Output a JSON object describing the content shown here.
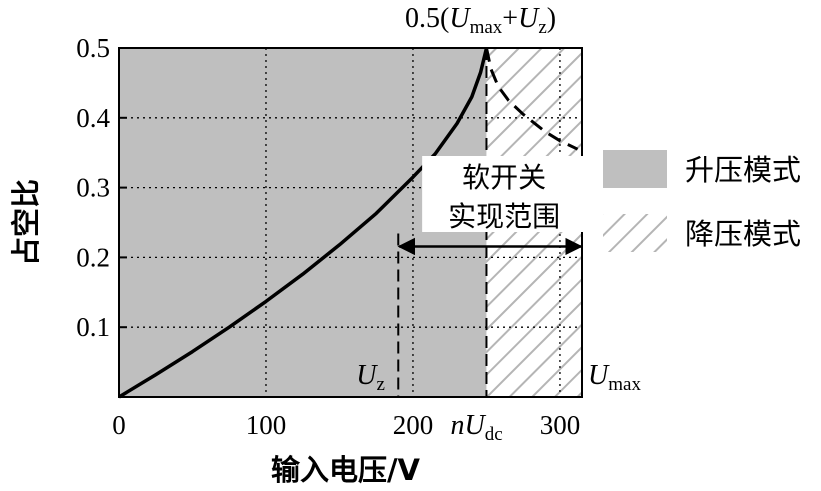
{
  "chart_data": {
    "type": "line",
    "xlabel": "输入电压/V",
    "ylabel": "占空比",
    "xlim": [
      0,
      315
    ],
    "ylim": [
      0,
      0.5
    ],
    "x_ticks": [
      {
        "value": 0,
        "label": "0"
      },
      {
        "value": 100,
        "label": "100"
      },
      {
        "value": 200,
        "label": "200"
      },
      {
        "value": 300,
        "label": "300"
      }
    ],
    "y_ticks": [
      {
        "value": 0.1,
        "label": "0.1"
      },
      {
        "value": 0.2,
        "label": "0.2"
      },
      {
        "value": 0.3,
        "label": "0.3"
      },
      {
        "value": 0.4,
        "label": "0.4"
      },
      {
        "value": 0.5,
        "label": "0.5"
      }
    ],
    "grid_x": [
      100,
      200,
      300
    ],
    "grid_y": [
      0.1,
      0.2,
      0.3,
      0.4
    ],
    "boost_region": {
      "x_from": 0,
      "x_to": 250,
      "label": "升压模式",
      "color": "#bfbfbf"
    },
    "buck_region": {
      "x_from": 250,
      "x_to": 315,
      "label": "降压模式",
      "color": "#bdbdbd"
    },
    "series": [
      {
        "style": "solid",
        "x": [
          0,
          25,
          50,
          75,
          100,
          125,
          150,
          175,
          200,
          215,
          230,
          240,
          246,
          250
        ],
        "y": [
          0,
          0.032,
          0.065,
          0.1,
          0.137,
          0.176,
          0.218,
          0.263,
          0.315,
          0.348,
          0.392,
          0.43,
          0.465,
          0.5
        ]
      },
      {
        "style": "dashed",
        "x": [
          250,
          253,
          258,
          265,
          275,
          290,
          300,
          312
        ],
        "y": [
          0.5,
          0.47,
          0.445,
          0.425,
          0.405,
          0.38,
          0.367,
          0.355
        ]
      }
    ],
    "markers": {
      "Uz": {
        "x": 190,
        "label_main": "U",
        "label_sub": "z"
      },
      "nUdc": {
        "x": 250,
        "label_pre": "n",
        "label_main": "U",
        "label_sub": "dc"
      },
      "Umax": {
        "x": 300,
        "label_main": "U",
        "label_sub": "max"
      }
    },
    "top_annotation": {
      "prefix": "0.5(",
      "u1": "U",
      "sub1": "max",
      "plus": "+",
      "u2": "U",
      "sub2": "z",
      "suffix": ")"
    },
    "range_annotation": {
      "line1": "软开关",
      "line2": "实现范围",
      "x_from": 190,
      "x_to": 315,
      "y": 0.22
    }
  }
}
